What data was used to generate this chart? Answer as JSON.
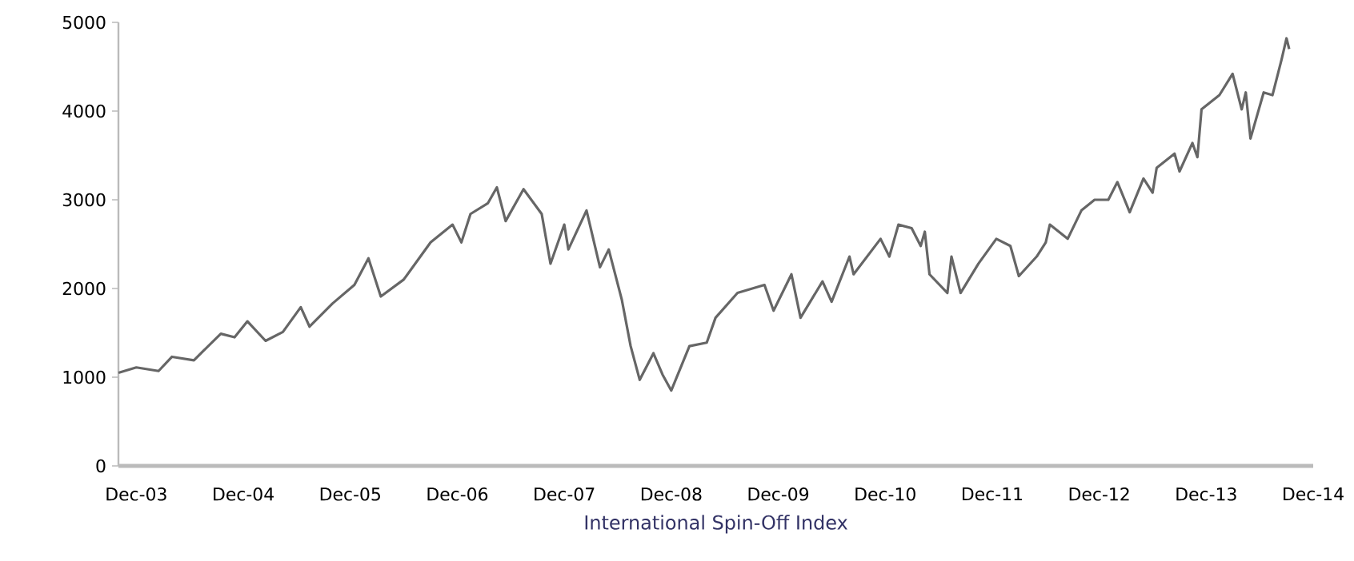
{
  "chart_data": {
    "type": "line",
    "xlabel": "International Spin-Off Index",
    "xlim": [
      "2003-10-01",
      "2014-12-01"
    ],
    "ylim": [
      0,
      5000
    ],
    "yticks": [
      0,
      1000,
      2000,
      3000,
      4000,
      5000
    ],
    "xticks": [
      {
        "value": "2003-12-01",
        "label": "Dec-03"
      },
      {
        "value": "2004-12-01",
        "label": "Dec-04"
      },
      {
        "value": "2005-12-01",
        "label": "Dec-05"
      },
      {
        "value": "2006-12-01",
        "label": "Dec-06"
      },
      {
        "value": "2007-12-01",
        "label": "Dec-07"
      },
      {
        "value": "2008-12-01",
        "label": "Dec-08"
      },
      {
        "value": "2009-12-01",
        "label": "Dec-09"
      },
      {
        "value": "2010-12-01",
        "label": "Dec-10"
      },
      {
        "value": "2011-12-01",
        "label": "Dec-11"
      },
      {
        "value": "2012-12-01",
        "label": "Dec-12"
      },
      {
        "value": "2013-12-01",
        "label": "Dec-13"
      },
      {
        "value": "2014-12-01",
        "label": "Dec-14"
      }
    ],
    "grid": false,
    "marker": "none",
    "line_style": "solid",
    "series": [
      {
        "color": "#666666",
        "x": [
          "2003-10-01",
          "2003-12-01",
          "2004-02-15",
          "2004-04-01",
          "2004-06-15",
          "2004-07-15",
          "2004-09-15",
          "2004-11-01",
          "2004-12-15",
          "2005-02-15",
          "2005-04-15",
          "2005-06-15",
          "2005-07-15",
          "2005-10-01",
          "2005-12-15",
          "2006-02-01",
          "2006-03-15",
          "2006-06-01",
          "2006-09-01",
          "2006-11-15",
          "2006-12-15",
          "2007-01-15",
          "2007-03-15",
          "2007-04-15",
          "2007-05-15",
          "2007-07-15",
          "2007-09-15",
          "2007-10-15",
          "2007-12-01",
          "2007-12-15",
          "2008-02-15",
          "2008-04-01",
          "2008-05-01",
          "2008-06-15",
          "2008-07-15",
          "2008-08-15",
          "2008-10-01",
          "2008-11-01",
          "2008-12-01",
          "2009-02-01",
          "2009-04-01",
          "2009-05-01",
          "2009-07-15",
          "2009-10-15",
          "2009-11-15",
          "2010-01-15",
          "2010-02-15",
          "2010-05-01",
          "2010-06-01",
          "2010-08-01",
          "2010-08-15",
          "2010-11-15",
          "2010-12-15",
          "2011-01-15",
          "2011-03-01",
          "2011-04-01",
          "2011-04-15",
          "2011-05-01",
          "2011-07-01",
          "2011-07-15",
          "2011-08-15",
          "2011-10-15",
          "2011-12-15",
          "2012-02-01",
          "2012-03-01",
          "2012-05-01",
          "2012-06-01",
          "2012-06-15",
          "2012-08-15",
          "2012-10-01",
          "2012-11-15",
          "2013-01-01",
          "2013-02-01",
          "2013-03-15",
          "2013-05-01",
          "2013-06-01",
          "2013-06-15",
          "2013-08-15",
          "2013-09-01",
          "2013-10-15",
          "2013-11-01",
          "2013-11-15",
          "2014-01-15",
          "2014-03-01",
          "2014-04-01",
          "2014-04-15",
          "2014-05-01",
          "2014-06-15",
          "2014-07-15",
          "2014-08-15",
          "2014-09-01",
          "2014-09-10"
        ],
        "values": [
          1050,
          1110,
          1070,
          1230,
          1190,
          1290,
          1490,
          1450,
          1630,
          1410,
          1510,
          1790,
          1570,
          1830,
          2040,
          2340,
          1910,
          2100,
          2520,
          2720,
          2520,
          2840,
          2960,
          3140,
          2760,
          3120,
          2840,
          2280,
          2720,
          2440,
          2880,
          2240,
          2440,
          1870,
          1350,
          970,
          1270,
          1030,
          850,
          1350,
          1390,
          1670,
          1950,
          2040,
          1750,
          2160,
          1670,
          2080,
          1850,
          2360,
          2160,
          2560,
          2360,
          2720,
          2680,
          2480,
          2640,
          2160,
          1950,
          2360,
          1950,
          2280,
          2560,
          2480,
          2140,
          2360,
          2520,
          2720,
          2560,
          2880,
          3000,
          3000,
          3200,
          2860,
          3240,
          3080,
          3360,
          3520,
          3320,
          3640,
          3480,
          4020,
          4180,
          4420,
          4020,
          4210,
          3690,
          4210,
          4180,
          4580,
          4820,
          4700
        ]
      }
    ]
  }
}
